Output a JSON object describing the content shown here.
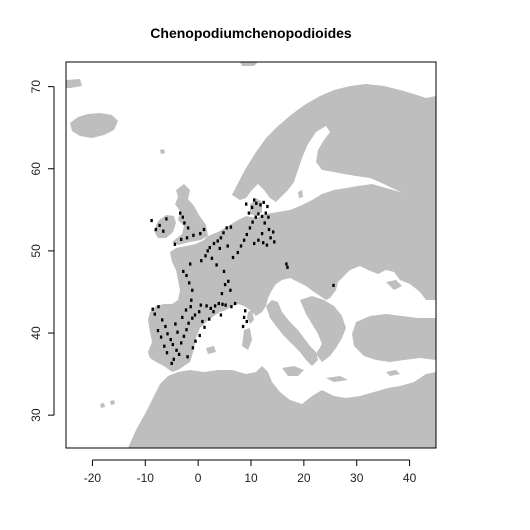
{
  "title": "Chenopodiumchenopodioides",
  "colors": {
    "land": "#bebebe",
    "sea": "#ffffff",
    "points": "#000000",
    "frame": "#000000"
  },
  "chart_data": {
    "type": "scatter",
    "title": "Chenopodiumchenopodioides",
    "xlabel": "",
    "ylabel": "",
    "xlim": [
      -25,
      45
    ],
    "ylim": [
      26,
      73
    ],
    "x_ticks": [
      -20,
      -10,
      0,
      10,
      20,
      30,
      40
    ],
    "y_ticks": [
      30,
      40,
      50,
      60,
      70
    ],
    "grid": false,
    "basemap": "Europe land outline (grey) on white sea",
    "series": [
      {
        "points": [
          [
            -8.6,
            42.9
          ],
          [
            -8.2,
            42.3
          ],
          [
            -7.5,
            43.2
          ],
          [
            -6.8,
            41.6
          ],
          [
            -6.2,
            40.8
          ],
          [
            -5.8,
            39.9
          ],
          [
            -5.2,
            39.2
          ],
          [
            -4.8,
            38.6
          ],
          [
            -4.1,
            37.9
          ],
          [
            -3.6,
            37.4
          ],
          [
            -3.2,
            38.8
          ],
          [
            -2.7,
            39.6
          ],
          [
            -2.2,
            40.4
          ],
          [
            -1.8,
            41.2
          ],
          [
            -1.1,
            41.8
          ],
          [
            -0.6,
            42.2
          ],
          [
            0.2,
            42.6
          ],
          [
            0.8,
            41.4
          ],
          [
            1.2,
            40.7
          ],
          [
            0.3,
            39.7
          ],
          [
            -0.5,
            39.0
          ],
          [
            -1.0,
            38.2
          ],
          [
            -2.0,
            37.1
          ],
          [
            -4.6,
            36.8
          ],
          [
            -5.9,
            37.6
          ],
          [
            -6.4,
            38.4
          ],
          [
            -7.0,
            39.5
          ],
          [
            -7.6,
            40.3
          ],
          [
            -3.9,
            40.1
          ],
          [
            -4.3,
            41.1
          ],
          [
            -3.0,
            41.9
          ],
          [
            -2.3,
            42.8
          ],
          [
            -1.4,
            43.2
          ],
          [
            0.5,
            43.4
          ],
          [
            1.6,
            43.3
          ],
          [
            2.4,
            43.0
          ],
          [
            3.2,
            43.3
          ],
          [
            3.9,
            43.6
          ],
          [
            4.6,
            43.5
          ],
          [
            5.2,
            43.4
          ],
          [
            6.3,
            43.2
          ],
          [
            7.0,
            43.6
          ],
          [
            2.9,
            42.6
          ],
          [
            2.1,
            41.7
          ],
          [
            4.3,
            42.2
          ],
          [
            -1.3,
            44.0
          ],
          [
            -1.1,
            45.2
          ],
          [
            -1.7,
            46.1
          ],
          [
            -2.2,
            47.0
          ],
          [
            -2.8,
            47.5
          ],
          [
            -1.5,
            48.4
          ],
          [
            0.6,
            48.8
          ],
          [
            1.4,
            49.4
          ],
          [
            2.2,
            50.4
          ],
          [
            3.0,
            50.9
          ],
          [
            3.7,
            51.2
          ],
          [
            4.3,
            51.6
          ],
          [
            4.8,
            52.2
          ],
          [
            5.4,
            52.8
          ],
          [
            6.2,
            52.9
          ],
          [
            -4.4,
            50.8
          ],
          [
            -3.2,
            51.4
          ],
          [
            -2.1,
            51.6
          ],
          [
            -0.9,
            51.9
          ],
          [
            0.4,
            52.1
          ],
          [
            1.1,
            52.6
          ],
          [
            -1.9,
            52.8
          ],
          [
            -2.6,
            53.4
          ],
          [
            -2.9,
            54.1
          ],
          [
            -3.4,
            54.6
          ],
          [
            -6.6,
            52.4
          ],
          [
            -7.3,
            53.1
          ],
          [
            -8.0,
            52.6
          ],
          [
            -8.8,
            53.7
          ],
          [
            -6.0,
            53.9
          ],
          [
            1.8,
            50.0
          ],
          [
            4.1,
            50.3
          ],
          [
            5.6,
            50.6
          ],
          [
            2.6,
            49.1
          ],
          [
            3.5,
            48.3
          ],
          [
            4.9,
            47.5
          ],
          [
            5.7,
            46.3
          ],
          [
            6.1,
            45.2
          ],
          [
            5.1,
            45.9
          ],
          [
            4.5,
            44.8
          ],
          [
            6.6,
            49.2
          ],
          [
            7.5,
            49.8
          ],
          [
            8.1,
            50.6
          ],
          [
            8.7,
            51.3
          ],
          [
            9.2,
            52.0
          ],
          [
            9.8,
            52.8
          ],
          [
            10.3,
            53.5
          ],
          [
            10.9,
            54.1
          ],
          [
            11.4,
            54.5
          ],
          [
            12.1,
            54.2
          ],
          [
            12.8,
            54.6
          ],
          [
            13.3,
            54.1
          ],
          [
            9.6,
            54.6
          ],
          [
            10.2,
            55.3
          ],
          [
            11.0,
            55.8
          ],
          [
            11.8,
            55.6
          ],
          [
            12.4,
            55.9
          ],
          [
            13.1,
            55.4
          ],
          [
            9.1,
            55.7
          ],
          [
            10.6,
            56.2
          ],
          [
            12.6,
            53.4
          ],
          [
            13.4,
            52.6
          ],
          [
            12.1,
            52.1
          ],
          [
            13.7,
            51.6
          ],
          [
            14.2,
            52.3
          ],
          [
            11.4,
            51.3
          ],
          [
            10.6,
            50.9
          ],
          [
            12.3,
            51.0
          ],
          [
            14.4,
            51.1
          ],
          [
            13.0,
            50.7
          ],
          [
            16.7,
            48.4
          ],
          [
            16.9,
            48.0
          ],
          [
            25.6,
            45.8
          ],
          [
            8.7,
            41.9
          ],
          [
            9.2,
            41.4
          ],
          [
            8.9,
            42.7
          ],
          [
            8.5,
            40.8
          ],
          [
            -5.0,
            36.3
          ]
        ]
      }
    ]
  }
}
